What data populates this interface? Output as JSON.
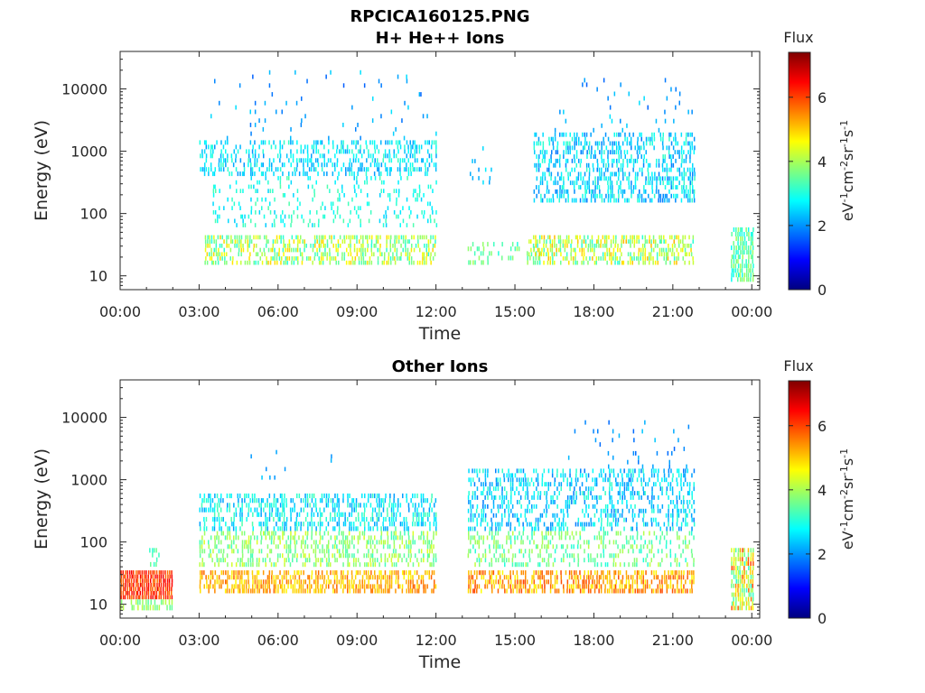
{
  "figure_title": "RPCICA160125.PNG",
  "colormap": [
    "#00007f",
    "#0000ff",
    "#007fff",
    "#00ffff",
    "#7fff7f",
    "#ffff00",
    "#ff7f00",
    "#ff0000",
    "#7f0000"
  ],
  "chart_data": [
    {
      "type": "heatmap",
      "title": "H+ He++ Ions",
      "xlabel": "Time",
      "ylabel": "Energy (eV)",
      "x_unit": "hours",
      "xlim": [
        0,
        24.3
      ],
      "x_ticks": [
        0,
        3,
        6,
        9,
        12,
        15,
        18,
        21,
        24
      ],
      "x_tick_labels": [
        "00:00",
        "03:00",
        "06:00",
        "09:00",
        "12:00",
        "15:00",
        "18:00",
        "21:00",
        "00:00"
      ],
      "y_scale": "log",
      "ylim": [
        6,
        40000
      ],
      "y_ticks": [
        10,
        100,
        1000,
        10000
      ],
      "y_tick_labels": [
        "10",
        "100",
        "1000",
        "10000"
      ],
      "colorbar": {
        "title": "Flux",
        "label": "eV-1cm-2sr-1s-1",
        "clim": [
          0,
          7.4
        ],
        "ticks": [
          0,
          2,
          4,
          6
        ],
        "tick_labels": [
          "0",
          "2",
          "4",
          "6"
        ]
      },
      "regions": [
        {
          "t": [
            3.0,
            12.0
          ],
          "e": [
            400,
            1500
          ],
          "flux": [
            2.0,
            3.2
          ],
          "density": 0.45
        },
        {
          "t": [
            3.5,
            12.0
          ],
          "e": [
            60,
            400
          ],
          "flux": [
            2.4,
            3.4
          ],
          "density": 0.18
        },
        {
          "t": [
            3.0,
            12.0
          ],
          "e": [
            1500,
            20000
          ],
          "flux": [
            1.6,
            2.6
          ],
          "density": 0.03
        },
        {
          "t": [
            3.2,
            12.0
          ],
          "e": [
            15,
            45
          ],
          "flux": [
            3.0,
            5.0
          ],
          "density": 0.55
        },
        {
          "t": [
            13.2,
            14.2
          ],
          "e": [
            250,
            1200
          ],
          "flux": [
            2.0,
            2.8
          ],
          "density": 0.15
        },
        {
          "t": [
            13.2,
            16.0
          ],
          "e": [
            15,
            35
          ],
          "flux": [
            3.0,
            4.0
          ],
          "density": 0.35
        },
        {
          "t": [
            15.7,
            21.8
          ],
          "e": [
            150,
            2000
          ],
          "flux": [
            1.8,
            3.2
          ],
          "density": 0.5
        },
        {
          "t": [
            16.5,
            21.8
          ],
          "e": [
            2000,
            15000
          ],
          "flux": [
            1.6,
            2.6
          ],
          "density": 0.04
        },
        {
          "t": [
            15.5,
            21.8
          ],
          "e": [
            15,
            45
          ],
          "flux": [
            3.0,
            5.2
          ],
          "density": 0.55
        },
        {
          "t": [
            23.2,
            24.0
          ],
          "e": [
            8,
            60
          ],
          "flux": [
            2.8,
            4.0
          ],
          "density": 0.8
        }
      ]
    },
    {
      "type": "heatmap",
      "title": "Other Ions",
      "xlabel": "Time",
      "ylabel": "Energy (eV)",
      "x_unit": "hours",
      "xlim": [
        0,
        24.3
      ],
      "x_ticks": [
        0,
        3,
        6,
        9,
        12,
        15,
        18,
        21,
        24
      ],
      "x_tick_labels": [
        "00:00",
        "03:00",
        "06:00",
        "09:00",
        "12:00",
        "15:00",
        "18:00",
        "21:00",
        "00:00"
      ],
      "y_scale": "log",
      "ylim": [
        6,
        40000
      ],
      "y_ticks": [
        10,
        100,
        1000,
        10000
      ],
      "y_tick_labels": [
        "10",
        "100",
        "1000",
        "10000"
      ],
      "colorbar": {
        "title": "Flux",
        "label": "eV-1cm-2sr-1s-1",
        "clim": [
          0,
          7.4
        ],
        "ticks": [
          0,
          2,
          4,
          6
        ],
        "tick_labels": [
          "0",
          "2",
          "4",
          "6"
        ]
      },
      "regions": [
        {
          "t": [
            0.0,
            2.0
          ],
          "e": [
            12,
            35
          ],
          "flux": [
            5.6,
            6.6
          ],
          "density": 1.0
        },
        {
          "t": [
            0.0,
            2.0
          ],
          "e": [
            8,
            12
          ],
          "flux": [
            3.4,
            4.2
          ],
          "density": 0.6
        },
        {
          "t": [
            1.1,
            1.5
          ],
          "e": [
            40,
            80
          ],
          "flux": [
            3.0,
            3.6
          ],
          "density": 0.5
        },
        {
          "t": [
            3.0,
            12.0
          ],
          "e": [
            150,
            600
          ],
          "flux": [
            2.0,
            3.4
          ],
          "density": 0.5
        },
        {
          "t": [
            3.0,
            12.0
          ],
          "e": [
            40,
            150
          ],
          "flux": [
            3.2,
            4.4
          ],
          "density": 0.45
        },
        {
          "t": [
            3.0,
            12.0
          ],
          "e": [
            15,
            35
          ],
          "flux": [
            4.6,
            5.8
          ],
          "density": 0.7
        },
        {
          "t": [
            3.5,
            8.0
          ],
          "e": [
            1000,
            3000
          ],
          "flux": [
            1.8,
            2.4
          ],
          "density": 0.02
        },
        {
          "t": [
            13.2,
            21.8
          ],
          "e": [
            150,
            1500
          ],
          "flux": [
            1.8,
            3.2
          ],
          "density": 0.45
        },
        {
          "t": [
            13.2,
            21.8
          ],
          "e": [
            40,
            150
          ],
          "flux": [
            3.0,
            4.2
          ],
          "density": 0.35
        },
        {
          "t": [
            13.2,
            21.8
          ],
          "e": [
            15,
            35
          ],
          "flux": [
            4.6,
            6.0
          ],
          "density": 0.7
        },
        {
          "t": [
            17.0,
            21.8
          ],
          "e": [
            1500,
            9000
          ],
          "flux": [
            1.6,
            2.4
          ],
          "density": 0.05
        },
        {
          "t": [
            23.2,
            24.0
          ],
          "e": [
            8,
            80
          ],
          "flux": [
            3.0,
            6.0
          ],
          "density": 0.85
        }
      ]
    }
  ]
}
